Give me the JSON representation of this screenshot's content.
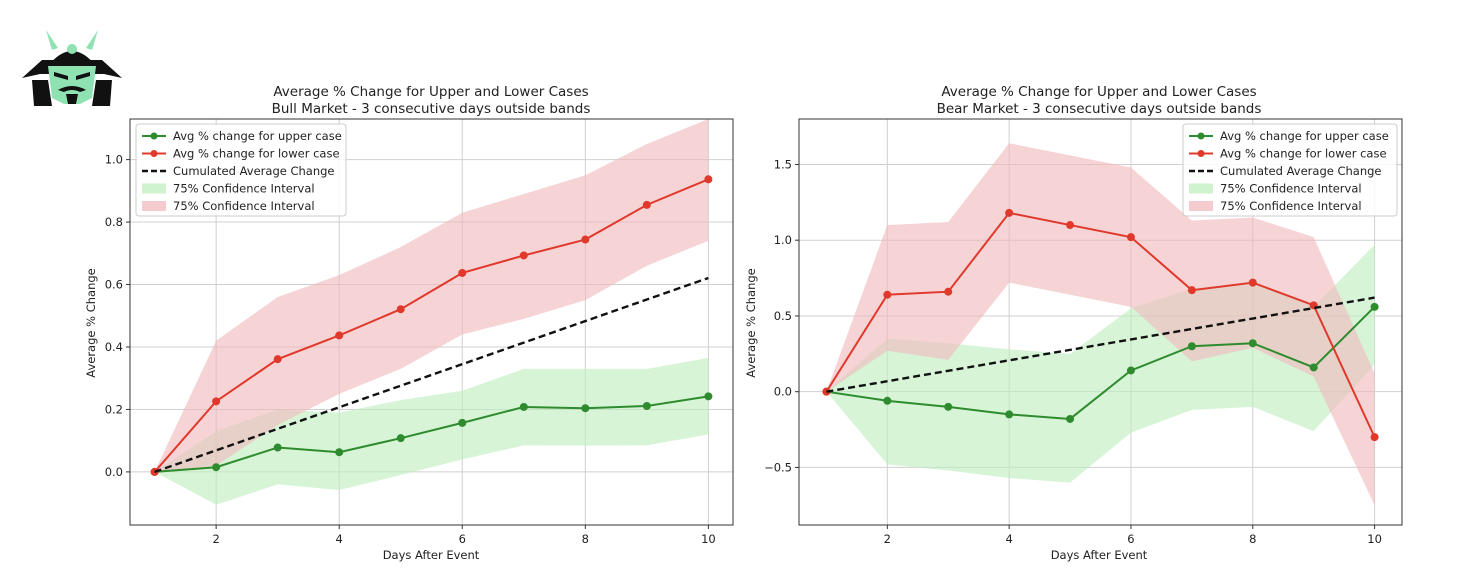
{
  "logo": {
    "name": "samurai-helmet-logo"
  },
  "colors": {
    "upper": "#2e8b2e",
    "lower": "#e0392b",
    "cumulative": "#111111",
    "upper_band": "#bfeebf",
    "lower_band": "#f0b9bd",
    "grid": "#d0d0d0",
    "logo_dark": "#111111",
    "logo_accent": "#8fe3b2"
  },
  "chart_data": [
    {
      "type": "line",
      "title_line1": "Average % Change for Upper and Lower Cases",
      "title_line2": "Bull Market - 3 consecutive days outside bands",
      "xlabel": "Days After Event",
      "ylabel": "Average % Change",
      "xlim": [
        0.6,
        10.4
      ],
      "ylim": [
        -0.17,
        1.13
      ],
      "xticks": [
        2,
        4,
        6,
        8,
        10
      ],
      "yticks": [
        0.0,
        0.2,
        0.4,
        0.6,
        0.8,
        1.0
      ],
      "ytick_labels": [
        "0.0",
        "0.2",
        "0.4",
        "0.6",
        "0.8",
        "1.0"
      ],
      "grid": true,
      "legend_position": "top-left",
      "x": [
        1,
        2,
        3,
        4,
        5,
        6,
        7,
        8,
        9,
        10
      ],
      "series": [
        {
          "name": "Avg % change for upper case",
          "key": "upper",
          "style": "line-marker",
          "values": [
            0.0,
            0.015,
            0.078,
            0.063,
            0.108,
            0.157,
            0.208,
            0.204,
            0.211,
            0.242
          ]
        },
        {
          "name": "Avg % change for lower case",
          "key": "lower",
          "style": "line-marker",
          "values": [
            0.0,
            0.226,
            0.361,
            0.437,
            0.521,
            0.637,
            0.693,
            0.744,
            0.855,
            0.937
          ]
        },
        {
          "name": "Cumulated Average Change",
          "key": "cumulative",
          "style": "dashed",
          "values": [
            0.0,
            0.069,
            0.138,
            0.207,
            0.276,
            0.345,
            0.414,
            0.483,
            0.552,
            0.621
          ]
        }
      ],
      "bands": [
        {
          "name": "75% Confidence Interval",
          "key": "upper_band",
          "lower": [
            0.0,
            -0.105,
            -0.04,
            -0.058,
            -0.01,
            0.04,
            0.085,
            0.084,
            0.085,
            0.12
          ],
          "upper": [
            0.0,
            0.13,
            0.2,
            0.19,
            0.23,
            0.26,
            0.33,
            0.33,
            0.33,
            0.365
          ]
        },
        {
          "name": "75% Confidence Interval",
          "key": "lower_band",
          "lower": [
            0.0,
            0.02,
            0.15,
            0.25,
            0.33,
            0.44,
            0.49,
            0.55,
            0.66,
            0.74
          ],
          "upper": [
            0.0,
            0.42,
            0.56,
            0.63,
            0.72,
            0.83,
            0.89,
            0.95,
            1.05,
            1.13
          ]
        }
      ]
    },
    {
      "type": "line",
      "title_line1": "Average % Change for Upper and Lower Cases",
      "title_line2": "Bear Market - 3 consecutive days outside bands",
      "xlabel": "Days After Event",
      "ylabel": "Average % Change",
      "xlim": [
        0.55,
        10.45
      ],
      "ylim": [
        -0.88,
        1.8
      ],
      "xticks": [
        2,
        4,
        6,
        8,
        10
      ],
      "yticks": [
        -0.5,
        0.0,
        0.5,
        1.0,
        1.5
      ],
      "ytick_labels": [
        "−0.5",
        "0.0",
        "0.5",
        "1.0",
        "1.5"
      ],
      "grid": true,
      "legend_position": "top-right",
      "x": [
        1,
        2,
        3,
        4,
        5,
        6,
        7,
        8,
        9,
        10
      ],
      "series": [
        {
          "name": "Avg % change for upper case",
          "key": "upper",
          "style": "line-marker",
          "values": [
            0.0,
            -0.06,
            -0.1,
            -0.15,
            -0.18,
            0.14,
            0.3,
            0.32,
            0.16,
            0.56
          ]
        },
        {
          "name": "Avg % change for lower case",
          "key": "lower",
          "style": "line-marker",
          "values": [
            0.0,
            0.64,
            0.66,
            1.18,
            1.1,
            1.02,
            0.67,
            0.72,
            0.57,
            -0.3
          ]
        },
        {
          "name": "Cumulated Average Change",
          "key": "cumulative",
          "style": "dashed",
          "values": [
            0.0,
            0.069,
            0.138,
            0.207,
            0.276,
            0.345,
            0.414,
            0.483,
            0.552,
            0.621
          ]
        }
      ],
      "bands": [
        {
          "name": "75% Confidence Interval",
          "key": "upper_band",
          "lower": [
            0.0,
            -0.48,
            -0.52,
            -0.57,
            -0.6,
            -0.27,
            -0.12,
            -0.1,
            -0.26,
            0.18
          ],
          "upper": [
            0.0,
            0.35,
            0.32,
            0.28,
            0.25,
            0.55,
            0.68,
            0.72,
            0.56,
            0.97
          ]
        },
        {
          "name": "75% Confidence Interval",
          "key": "lower_band",
          "lower": [
            0.0,
            0.27,
            0.21,
            0.72,
            0.64,
            0.56,
            0.2,
            0.29,
            0.1,
            -0.75
          ],
          "upper": [
            0.0,
            1.1,
            1.12,
            1.64,
            1.56,
            1.48,
            1.13,
            1.15,
            1.02,
            0.12
          ]
        }
      ]
    }
  ]
}
